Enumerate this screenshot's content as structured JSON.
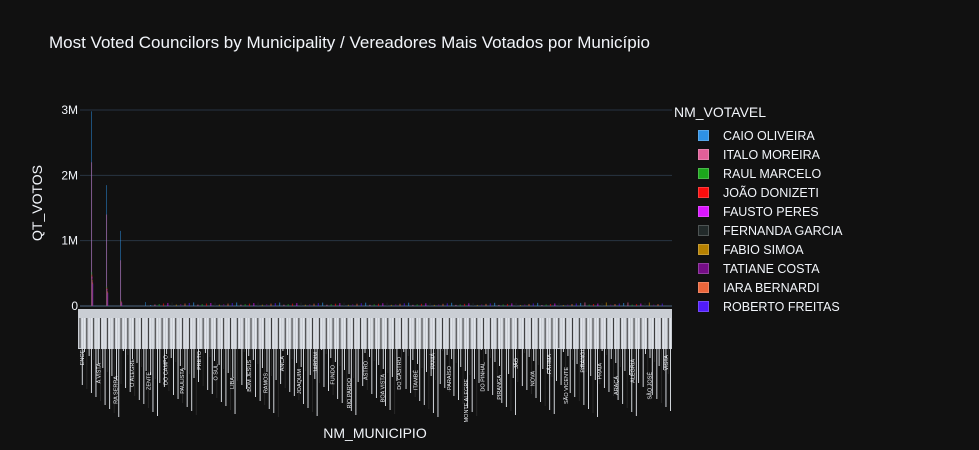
{
  "chart_data": {
    "type": "bar",
    "title": "Most Voted Councilors by Municipality / Vereadores Mais Votados por Município",
    "xlabel": "NM_MUNICIPIO",
    "ylabel": "QT_VOTOS",
    "ylim": [
      0,
      3000000
    ],
    "y_ticks": [
      {
        "value": 0,
        "label": "0"
      },
      {
        "value": 1000000,
        "label": "1M"
      },
      {
        "value": 2000000,
        "label": "2M"
      },
      {
        "value": 3000000,
        "label": "3M"
      }
    ],
    "grid": true,
    "legend_placement": "right",
    "legend_title": "NM_VOTAVEL",
    "series": [
      {
        "name": "CAIO OLIVEIRA",
        "color": "#2e91e5",
        "values": [
          2980000,
          1850000,
          1150000,
          60000
        ]
      },
      {
        "name": "ITALO MOREIRA",
        "color": "#e15f99",
        "values": [
          2200000,
          1400000,
          700000
        ]
      },
      {
        "name": "RAUL MARCELO",
        "color": "#1ca71c",
        "values": [
          520000,
          300000,
          90000
        ]
      },
      {
        "name": "JOÃO DONIZETI",
        "color": "#fb0d0d",
        "values": [
          480000,
          280000,
          80000
        ]
      },
      {
        "name": "FAUSTO PERES",
        "color": "#da16ff",
        "values": [
          450000,
          260000,
          75000
        ]
      },
      {
        "name": "FERNANDA GARCIA",
        "color": "#222a2a",
        "values": [
          420000,
          240000,
          70000
        ]
      },
      {
        "name": "FABIO SIMOA",
        "color": "#b68100",
        "values": [
          400000,
          230000,
          65000
        ]
      },
      {
        "name": "TATIANE  COSTA",
        "color": "#750d86",
        "values": [
          380000,
          220000,
          60000
        ]
      },
      {
        "name": "IARA BERNARDI",
        "color": "#eb663b",
        "values": [
          360000,
          210000,
          55000
        ]
      },
      {
        "name": "ROBERTO FREITAS",
        "color": "#511cfb",
        "values": [
          340000,
          200000,
          50000
        ]
      }
    ],
    "category_labels": [
      "ENCE",
      "A VISTA",
      "RA SERRA",
      "O ALEGRE",
      "ZENTE",
      "DO CAMPO",
      "PAULISTA",
      "PRETO",
      "O SUL",
      "LIBA",
      "BOM JESUS",
      "RAMOS",
      "ANCA",
      "JOAQUIM",
      "JARDIM",
      "FUNDO",
      "RIO PARDO",
      "ASTRO",
      "BOA VISTA",
      "DO CASTRO",
      "ITAMBÉ",
      "PANIÁ",
      "PARAÍSO",
      "MONTE ALEGRE",
      "DO PINHAL",
      "PIRANGA",
      "JÃO",
      "NOVA",
      "FÁTIMA",
      "SÃO VICENTE",
      "PIRANGI",
      "PRAIA",
      "ARAÇÁ",
      "ALEGRIA",
      "SÃO JOSÉ",
      "VISTA"
    ]
  }
}
